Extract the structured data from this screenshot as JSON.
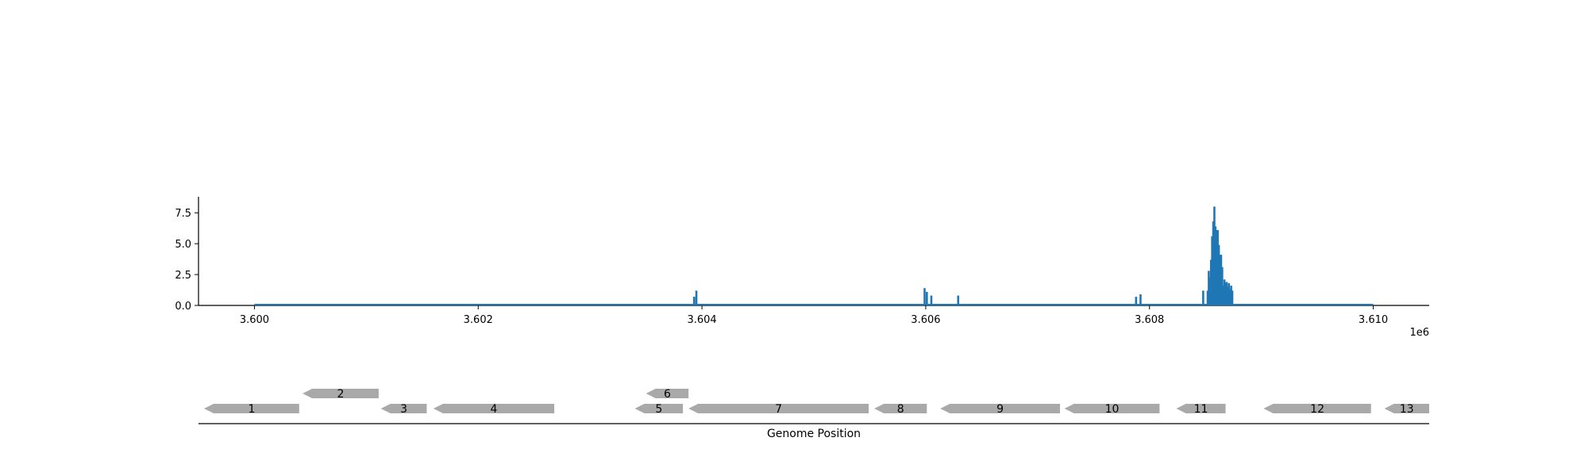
{
  "chart_data": [
    {
      "type": "bar",
      "title": "",
      "xlabel": "",
      "ylabel": "",
      "x_offset_label": "1e6",
      "xlim": [
        3599500,
        3610500
      ],
      "ylim": [
        0,
        8.8
      ],
      "x_ticks": [
        3600000,
        3602000,
        3604000,
        3606000,
        3608000,
        3610000
      ],
      "x_tick_labels": [
        "3.600",
        "3.602",
        "3.604",
        "3.606",
        "3.608",
        "3.610"
      ],
      "y_ticks": [
        0,
        2.5,
        5,
        7.5
      ],
      "y_tick_labels": [
        "0.0",
        "2.5",
        "5.0",
        "7.5"
      ],
      "baseline": [
        3600000,
        3610000
      ],
      "bar_color": "#1f77b4",
      "grid": false,
      "x": [
        3603930,
        3603950,
        3605990,
        3606010,
        3606050,
        3606290,
        3607880,
        3607920,
        3608480,
        3608520,
        3608530,
        3608540,
        3608550,
        3608560,
        3608570,
        3608580,
        3608590,
        3608600,
        3608610,
        3608620,
        3608630,
        3608640,
        3608650,
        3608660,
        3608670,
        3608680,
        3608690,
        3608700,
        3608710,
        3608720,
        3608730,
        3608740
      ],
      "values": [
        0.7,
        1.2,
        1.4,
        1.1,
        0.8,
        0.8,
        0.7,
        0.9,
        1.2,
        1.2,
        2.8,
        2.3,
        3.7,
        5.6,
        6.8,
        8.0,
        6.4,
        6.1,
        6.1,
        4.9,
        4.1,
        4.1,
        3.1,
        1.6,
        2.1,
        1.8,
        1.9,
        1.5,
        1.8,
        1.3,
        1.6,
        1.2
      ]
    },
    {
      "type": "gene-track",
      "xlabel": "Genome Position",
      "genes": [
        {
          "label": "1",
          "start": 3599550,
          "end": 3600400,
          "strand": "-",
          "row": 0
        },
        {
          "label": "2",
          "start": 3600430,
          "end": 3601110,
          "strand": "-",
          "row": 1
        },
        {
          "label": "3",
          "start": 3601130,
          "end": 3601540,
          "strand": "-",
          "row": 0
        },
        {
          "label": "4",
          "start": 3601600,
          "end": 3602680,
          "strand": "-",
          "row": 0
        },
        {
          "label": "5",
          "start": 3603400,
          "end": 3603830,
          "strand": "-",
          "row": 0
        },
        {
          "label": "6",
          "start": 3603500,
          "end": 3603880,
          "strand": "-",
          "row": 1
        },
        {
          "label": "7",
          "start": 3603880,
          "end": 3605490,
          "strand": "-",
          "row": 0
        },
        {
          "label": "8",
          "start": 3605540,
          "end": 3606010,
          "strand": "-",
          "row": 0
        },
        {
          "label": "9",
          "start": 3606130,
          "end": 3607200,
          "strand": "-",
          "row": 0
        },
        {
          "label": "10",
          "start": 3607240,
          "end": 3608090,
          "strand": "-",
          "row": 0
        },
        {
          "label": "11",
          "start": 3608240,
          "end": 3608680,
          "strand": "-",
          "row": 0
        },
        {
          "label": "12",
          "start": 3609020,
          "end": 3609980,
          "strand": "-",
          "row": 0
        },
        {
          "label": "13",
          "start": 3610100,
          "end": 3610500,
          "strand": "-",
          "row": 0
        }
      ],
      "gene_color": "#a9a9a9"
    }
  ]
}
